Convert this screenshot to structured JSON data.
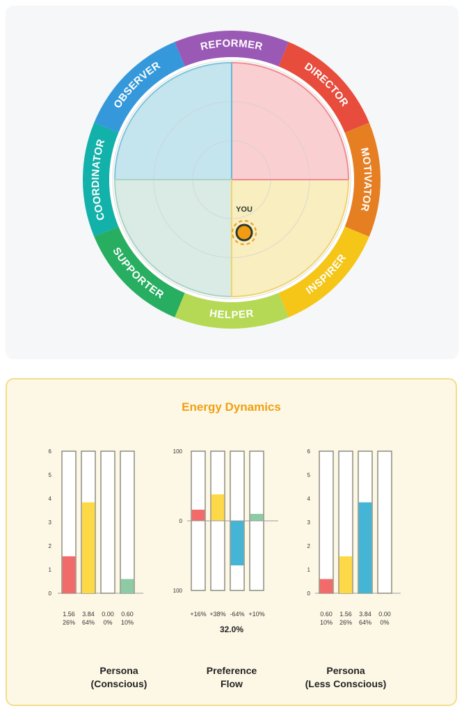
{
  "wheel": {
    "segments": [
      {
        "label": "REFORMER",
        "color": "#9b59b6"
      },
      {
        "label": "DIRECTOR",
        "color": "#e74c3c"
      },
      {
        "label": "MOTIVATOR",
        "color": "#e67e22"
      },
      {
        "label": "INSPIRER",
        "color": "#f5c518"
      },
      {
        "label": "HELPER",
        "color": "#b5d955"
      },
      {
        "label": "SUPPORTER",
        "color": "#27ae60"
      },
      {
        "label": "COORDINATOR",
        "color": "#12b1aa"
      },
      {
        "label": "OBSERVER",
        "color": "#3498db"
      }
    ],
    "quadrant_colors": {
      "top_left": "#c4e4ee",
      "top_right": "#f9cfd1",
      "bottom_left": "#d9ebe4",
      "bottom_right": "#f8eec0"
    },
    "you_label": "YOU",
    "marker_color": "#f39c12"
  },
  "energy": {
    "title": "Energy Dynamics",
    "charts": [
      {
        "label_line1": "Persona",
        "label_line2": "(Conscious)",
        "chart_data": {
          "type": "bar",
          "ylim": [
            0,
            6
          ],
          "yticks": [
            "0",
            "1",
            "2",
            "3",
            "4",
            "5",
            "6"
          ],
          "values": [
            1.56,
            3.84,
            0.0,
            0.6
          ],
          "colors": [
            "#f26b6b",
            "#fdd947",
            "#45b5d6",
            "#8ecaa4"
          ],
          "value_labels": [
            "1.56",
            "3.84",
            "0.00",
            "0.60"
          ],
          "pct_labels": [
            "26%",
            "64%",
            "0%",
            "10%"
          ]
        }
      },
      {
        "label_line1": "Preference",
        "label_line2": "Flow",
        "total": "32.0%",
        "chart_data": {
          "type": "bar",
          "ylim": [
            -100,
            100
          ],
          "yticks": [
            "100",
            "0",
            "100"
          ],
          "values": [
            16,
            38,
            -64,
            10
          ],
          "colors": [
            "#f26b6b",
            "#fdd947",
            "#45b5d6",
            "#8ecaa4"
          ],
          "value_labels": [
            "+16%",
            "+38%",
            "-64%",
            "+10%"
          ]
        }
      },
      {
        "label_line1": "Persona",
        "label_line2": "(Less Conscious)",
        "chart_data": {
          "type": "bar",
          "ylim": [
            0,
            6
          ],
          "yticks": [
            "0",
            "1",
            "2",
            "3",
            "4",
            "5",
            "6"
          ],
          "values": [
            0.6,
            1.56,
            3.84,
            0.0
          ],
          "colors": [
            "#f26b6b",
            "#fdd947",
            "#45b5d6",
            "#8ecaa4"
          ],
          "value_labels": [
            "0.60",
            "1.56",
            "3.84",
            "0.00"
          ],
          "pct_labels": [
            "10%",
            "26%",
            "64%",
            "0%"
          ]
        }
      }
    ]
  }
}
